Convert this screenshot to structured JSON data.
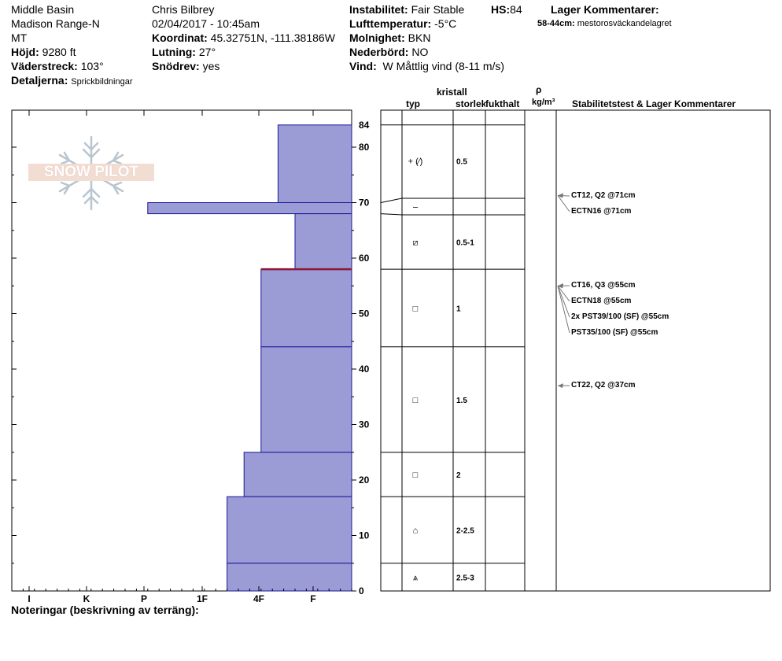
{
  "header": {
    "location": [
      "Middle Basin",
      "Madison Range-N",
      "MT"
    ],
    "elevation_label": "Höjd:",
    "elevation_value": "9280 ft",
    "aspect_label": "Väderstreck:",
    "aspect_value": "103°",
    "details_label": "Detaljerna:",
    "details_value": "Sprickbildningar",
    "observer": "Chris Bilbrey",
    "datetime": "02/04/2017 - 10:45am",
    "coord_label": "Koordinat:",
    "coord_value": "45.32751N, -111.38186W",
    "slope_label": "Lutning:",
    "slope_value": "27°",
    "drift_label": "Snödrev:",
    "drift_value": "yes",
    "instability_label": "Instabilitet:",
    "instability_value": "Fair Stable",
    "hs_label": "HS:",
    "hs_value": "84",
    "airtemp_label": "Lufttemperatur:",
    "airtemp_value": "-5°C",
    "sky_label": "Molnighet:",
    "sky_value": "BKN",
    "precip_label": "Nederbörd:",
    "precip_value": "NO",
    "wind_label": "Vind:",
    "wind_value": "W Måttlig vind (8-11 m/s)",
    "layer_comments_title": "Lager Kommentarer:",
    "layer_comment_range": "58-44cm:",
    "layer_comment_text": "mestorosväckandelagret"
  },
  "logo_text": "SNOW PILOT",
  "columns": {
    "crystal": "kristall",
    "type": "typ",
    "size": "storlek",
    "moisture": "fukthalt",
    "rho": "ρ",
    "density_unit": "kg/m³",
    "stability": "Stabilitetstest & Lager Kommentarer"
  },
  "notes_label": "Noteringar (beskrivning av terräng):",
  "colors": {
    "fill": "#9b9bd6",
    "edge": "#1a1a99",
    "weak": "#8b1a3a",
    "gray": "#777777"
  },
  "chart_data": {
    "type": "snow_profile",
    "hs": 84,
    "depth_ticks": [
      0,
      10,
      20,
      30,
      40,
      50,
      60,
      70,
      80,
      84
    ],
    "hardness_labels": [
      "I",
      "K",
      "P",
      "1F",
      "4F",
      "F"
    ],
    "layers": [
      {
        "top": 84,
        "bottom": 70,
        "hardness": 1.3,
        "grain": "+ (⁄)",
        "size": "0.5"
      },
      {
        "top": 70,
        "bottom": 68,
        "hardness": 3.6,
        "grain": "–",
        "size": ""
      },
      {
        "top": 68,
        "bottom": 58,
        "hardness": 1.0,
        "grain": "⧄",
        "size": "0.5-1"
      },
      {
        "top": 58,
        "bottom": 44,
        "hardness": 1.6,
        "grain": "□",
        "size": "1"
      },
      {
        "top": 44,
        "bottom": 25,
        "hardness": 1.6,
        "grain": "□",
        "size": "1.5"
      },
      {
        "top": 25,
        "bottom": 17,
        "hardness": 1.9,
        "grain": "□",
        "size": "2"
      },
      {
        "top": 17,
        "bottom": 5,
        "hardness": 2.2,
        "grain": "⌂",
        "size": "2-2.5"
      },
      {
        "top": 5,
        "bottom": 0,
        "hardness": 2.2,
        "grain": "⩓",
        "size": "2.5-3"
      }
    ],
    "weak_layer_depth": 58,
    "tests": [
      {
        "depth": 71,
        "label": "CT12, Q2 @71cm"
      },
      {
        "depth": 71,
        "label": "ECTN16 @71cm"
      },
      {
        "depth": 55,
        "label": "CT16, Q3 @55cm"
      },
      {
        "depth": 55,
        "label": "ECTN18 @55cm"
      },
      {
        "depth": 55,
        "label": "2x PST39/100 (SF) @55cm"
      },
      {
        "depth": 55,
        "label": "PST35/100 (SF) @55cm"
      },
      {
        "depth": 37,
        "label": "CT22, Q2 @37cm"
      }
    ]
  }
}
